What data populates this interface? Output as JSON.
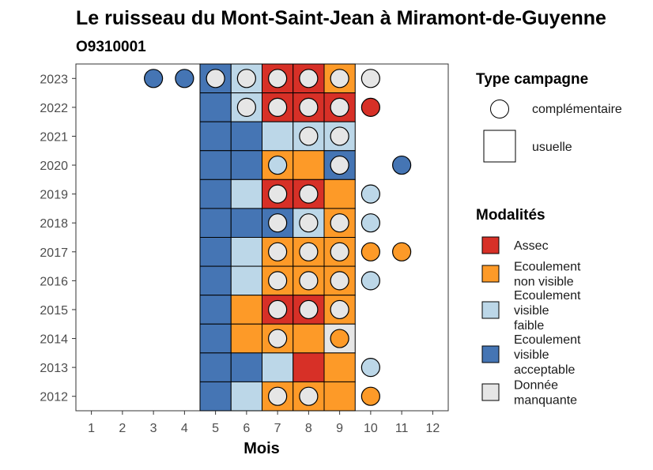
{
  "chart_data": {
    "type": "heatmap",
    "title": "Le ruisseau du Mont-Saint-Jean à Miramont-de-Guyenne",
    "subtitle": "O9310001",
    "xlabel": "Mois",
    "ylabel": "",
    "x_ticks": [
      "1",
      "2",
      "3",
      "4",
      "5",
      "6",
      "7",
      "8",
      "9",
      "10",
      "11",
      "12"
    ],
    "y_ticks": [
      "2012",
      "2013",
      "2014",
      "2015",
      "2016",
      "2017",
      "2018",
      "2019",
      "2020",
      "2021",
      "2022",
      "2023"
    ],
    "xlim": [
      0.5,
      12.5
    ],
    "ylim": [
      2011.5,
      2023.5
    ],
    "grid": false,
    "legend_position": "right",
    "legend_type": {
      "title": "Type campagne",
      "items": [
        {
          "key": "complementaire",
          "label": "complémentaire",
          "shape": "circle"
        },
        {
          "key": "usuelle",
          "label": "usuelle",
          "shape": "square"
        }
      ]
    },
    "legend_modalites": {
      "title": "Modalités",
      "items": [
        {
          "key": "assec",
          "label_lines": [
            "Assec"
          ],
          "color": "#d73027"
        },
        {
          "key": "ecoulement_non_visible",
          "label_lines": [
            "Ecoulement",
            "non visible"
          ],
          "color": "#fd9a28"
        },
        {
          "key": "ecoulement_visible_faible",
          "label_lines": [
            "Ecoulement",
            "visible",
            "faible"
          ],
          "color": "#bcd7e8"
        },
        {
          "key": "ecoulement_visible_acceptable",
          "label_lines": [
            "Ecoulement",
            "visible",
            "acceptable"
          ],
          "color": "#4575b4"
        },
        {
          "key": "donnee_manquante",
          "label_lines": [
            "Donnée",
            "manquante"
          ],
          "color": "#e6e6e6"
        }
      ]
    },
    "usuelle": [
      {
        "year": 2023,
        "month": 5,
        "modalite": "ecoulement_visible_acceptable"
      },
      {
        "year": 2023,
        "month": 6,
        "modalite": "ecoulement_visible_faible"
      },
      {
        "year": 2023,
        "month": 7,
        "modalite": "assec"
      },
      {
        "year": 2023,
        "month": 8,
        "modalite": "assec"
      },
      {
        "year": 2023,
        "month": 9,
        "modalite": "ecoulement_non_visible"
      },
      {
        "year": 2022,
        "month": 5,
        "modalite": "ecoulement_visible_acceptable"
      },
      {
        "year": 2022,
        "month": 6,
        "modalite": "ecoulement_visible_faible"
      },
      {
        "year": 2022,
        "month": 7,
        "modalite": "assec"
      },
      {
        "year": 2022,
        "month": 8,
        "modalite": "assec"
      },
      {
        "year": 2022,
        "month": 9,
        "modalite": "assec"
      },
      {
        "year": 2021,
        "month": 5,
        "modalite": "ecoulement_visible_acceptable"
      },
      {
        "year": 2021,
        "month": 6,
        "modalite": "ecoulement_visible_acceptable"
      },
      {
        "year": 2021,
        "month": 7,
        "modalite": "ecoulement_visible_faible"
      },
      {
        "year": 2021,
        "month": 8,
        "modalite": "ecoulement_visible_faible"
      },
      {
        "year": 2021,
        "month": 9,
        "modalite": "ecoulement_visible_faible"
      },
      {
        "year": 2020,
        "month": 5,
        "modalite": "ecoulement_visible_acceptable"
      },
      {
        "year": 2020,
        "month": 6,
        "modalite": "ecoulement_visible_acceptable"
      },
      {
        "year": 2020,
        "month": 7,
        "modalite": "ecoulement_non_visible"
      },
      {
        "year": 2020,
        "month": 8,
        "modalite": "ecoulement_non_visible"
      },
      {
        "year": 2020,
        "month": 9,
        "modalite": "ecoulement_visible_acceptable"
      },
      {
        "year": 2019,
        "month": 5,
        "modalite": "ecoulement_visible_acceptable"
      },
      {
        "year": 2019,
        "month": 6,
        "modalite": "ecoulement_visible_faible"
      },
      {
        "year": 2019,
        "month": 7,
        "modalite": "assec"
      },
      {
        "year": 2019,
        "month": 8,
        "modalite": "assec"
      },
      {
        "year": 2019,
        "month": 9,
        "modalite": "ecoulement_non_visible"
      },
      {
        "year": 2018,
        "month": 5,
        "modalite": "ecoulement_visible_acceptable"
      },
      {
        "year": 2018,
        "month": 6,
        "modalite": "ecoulement_visible_acceptable"
      },
      {
        "year": 2018,
        "month": 7,
        "modalite": "ecoulement_visible_acceptable"
      },
      {
        "year": 2018,
        "month": 8,
        "modalite": "ecoulement_visible_faible"
      },
      {
        "year": 2018,
        "month": 9,
        "modalite": "ecoulement_non_visible"
      },
      {
        "year": 2017,
        "month": 5,
        "modalite": "ecoulement_visible_acceptable"
      },
      {
        "year": 2017,
        "month": 6,
        "modalite": "ecoulement_visible_faible"
      },
      {
        "year": 2017,
        "month": 7,
        "modalite": "ecoulement_non_visible"
      },
      {
        "year": 2017,
        "month": 8,
        "modalite": "ecoulement_non_visible"
      },
      {
        "year": 2017,
        "month": 9,
        "modalite": "ecoulement_non_visible"
      },
      {
        "year": 2016,
        "month": 5,
        "modalite": "ecoulement_visible_acceptable"
      },
      {
        "year": 2016,
        "month": 6,
        "modalite": "ecoulement_visible_faible"
      },
      {
        "year": 2016,
        "month": 7,
        "modalite": "ecoulement_non_visible"
      },
      {
        "year": 2016,
        "month": 8,
        "modalite": "ecoulement_non_visible"
      },
      {
        "year": 2016,
        "month": 9,
        "modalite": "ecoulement_non_visible"
      },
      {
        "year": 2015,
        "month": 5,
        "modalite": "ecoulement_visible_acceptable"
      },
      {
        "year": 2015,
        "month": 6,
        "modalite": "ecoulement_non_visible"
      },
      {
        "year": 2015,
        "month": 7,
        "modalite": "assec"
      },
      {
        "year": 2015,
        "month": 8,
        "modalite": "assec"
      },
      {
        "year": 2015,
        "month": 9,
        "modalite": "ecoulement_non_visible"
      },
      {
        "year": 2014,
        "month": 5,
        "modalite": "ecoulement_visible_acceptable"
      },
      {
        "year": 2014,
        "month": 6,
        "modalite": "ecoulement_non_visible"
      },
      {
        "year": 2014,
        "month": 7,
        "modalite": "ecoulement_non_visible"
      },
      {
        "year": 2014,
        "month": 8,
        "modalite": "ecoulement_non_visible"
      },
      {
        "year": 2014,
        "month": 9,
        "modalite": "donnee_manquante"
      },
      {
        "year": 2013,
        "month": 5,
        "modalite": "ecoulement_visible_acceptable"
      },
      {
        "year": 2013,
        "month": 6,
        "modalite": "ecoulement_visible_acceptable"
      },
      {
        "year": 2013,
        "month": 7,
        "modalite": "ecoulement_visible_faible"
      },
      {
        "year": 2013,
        "month": 8,
        "modalite": "assec"
      },
      {
        "year": 2013,
        "month": 9,
        "modalite": "ecoulement_non_visible"
      },
      {
        "year": 2012,
        "month": 5,
        "modalite": "ecoulement_visible_acceptable"
      },
      {
        "year": 2012,
        "month": 6,
        "modalite": "ecoulement_visible_faible"
      },
      {
        "year": 2012,
        "month": 7,
        "modalite": "ecoulement_non_visible"
      },
      {
        "year": 2012,
        "month": 8,
        "modalite": "ecoulement_non_visible"
      },
      {
        "year": 2012,
        "month": 9,
        "modalite": "ecoulement_non_visible"
      }
    ],
    "complementaire": [
      {
        "year": 2023,
        "month": 3,
        "modalite": "ecoulement_visible_acceptable"
      },
      {
        "year": 2023,
        "month": 4,
        "modalite": "ecoulement_visible_acceptable"
      },
      {
        "year": 2023,
        "month": 5,
        "modalite": "donnee_manquante"
      },
      {
        "year": 2023,
        "month": 6,
        "modalite": "donnee_manquante"
      },
      {
        "year": 2023,
        "month": 7,
        "modalite": "donnee_manquante"
      },
      {
        "year": 2023,
        "month": 8,
        "modalite": "donnee_manquante"
      },
      {
        "year": 2023,
        "month": 9,
        "modalite": "donnee_manquante"
      },
      {
        "year": 2023,
        "month": 10,
        "modalite": "donnee_manquante"
      },
      {
        "year": 2022,
        "month": 6,
        "modalite": "donnee_manquante"
      },
      {
        "year": 2022,
        "month": 7,
        "modalite": "donnee_manquante"
      },
      {
        "year": 2022,
        "month": 8,
        "modalite": "donnee_manquante"
      },
      {
        "year": 2022,
        "month": 9,
        "modalite": "donnee_manquante"
      },
      {
        "year": 2022,
        "month": 10,
        "modalite": "assec"
      },
      {
        "year": 2021,
        "month": 8,
        "modalite": "donnee_manquante"
      },
      {
        "year": 2021,
        "month": 9,
        "modalite": "donnee_manquante"
      },
      {
        "year": 2020,
        "month": 7,
        "modalite": "ecoulement_visible_faible"
      },
      {
        "year": 2020,
        "month": 9,
        "modalite": "donnee_manquante"
      },
      {
        "year": 2020,
        "month": 11,
        "modalite": "ecoulement_visible_acceptable"
      },
      {
        "year": 2019,
        "month": 7,
        "modalite": "donnee_manquante"
      },
      {
        "year": 2019,
        "month": 8,
        "modalite": "donnee_manquante"
      },
      {
        "year": 2019,
        "month": 10,
        "modalite": "ecoulement_visible_faible"
      },
      {
        "year": 2018,
        "month": 7,
        "modalite": "donnee_manquante"
      },
      {
        "year": 2018,
        "month": 8,
        "modalite": "donnee_manquante"
      },
      {
        "year": 2018,
        "month": 9,
        "modalite": "donnee_manquante"
      },
      {
        "year": 2018,
        "month": 10,
        "modalite": "ecoulement_visible_faible"
      },
      {
        "year": 2017,
        "month": 7,
        "modalite": "donnee_manquante"
      },
      {
        "year": 2017,
        "month": 8,
        "modalite": "donnee_manquante"
      },
      {
        "year": 2017,
        "month": 9,
        "modalite": "donnee_manquante"
      },
      {
        "year": 2017,
        "month": 10,
        "modalite": "ecoulement_non_visible"
      },
      {
        "year": 2017,
        "month": 11,
        "modalite": "ecoulement_non_visible"
      },
      {
        "year": 2016,
        "month": 7,
        "modalite": "donnee_manquante"
      },
      {
        "year": 2016,
        "month": 8,
        "modalite": "donnee_manquante"
      },
      {
        "year": 2016,
        "month": 9,
        "modalite": "donnee_manquante"
      },
      {
        "year": 2016,
        "month": 10,
        "modalite": "ecoulement_visible_faible"
      },
      {
        "year": 2015,
        "month": 7,
        "modalite": "donnee_manquante"
      },
      {
        "year": 2015,
        "month": 8,
        "modalite": "donnee_manquante"
      },
      {
        "year": 2015,
        "month": 9,
        "modalite": "donnee_manquante"
      },
      {
        "year": 2014,
        "month": 7,
        "modalite": "donnee_manquante"
      },
      {
        "year": 2014,
        "month": 9,
        "modalite": "ecoulement_non_visible"
      },
      {
        "year": 2013,
        "month": 10,
        "modalite": "ecoulement_visible_faible"
      },
      {
        "year": 2012,
        "month": 7,
        "modalite": "donnee_manquante"
      },
      {
        "year": 2012,
        "month": 8,
        "modalite": "donnee_manquante"
      },
      {
        "year": 2012,
        "month": 10,
        "modalite": "ecoulement_non_visible"
      }
    ]
  }
}
